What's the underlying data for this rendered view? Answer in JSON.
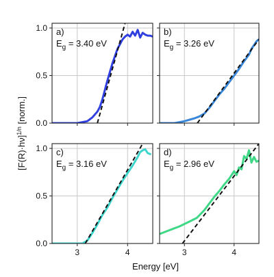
{
  "chart_data": {
    "type": "line",
    "ylabel": "[F(R)·hν]1/n [norm.]",
    "ylabel_main": "[F(R)·hν]",
    "ylabel_sup": "1/n",
    "ylabel_unit": " [norm.]",
    "xlabel": "Energy [eV]",
    "xlim": [
      2.5,
      4.5
    ],
    "ylim": [
      0,
      1.05
    ],
    "x_ticks": [
      3,
      4
    ],
    "y_ticks": [
      0.0,
      0.5,
      1.0
    ],
    "x_tick_labels": [
      "3",
      "4"
    ],
    "y_tick_labels": [
      "0.0",
      "0.5",
      "1.0"
    ],
    "grid": true,
    "layout": "2x2",
    "panels": [
      {
        "label": "a)",
        "gap_prefix": "E",
        "gap_sub": "g",
        "gap_value": " = 3.40 eV",
        "color": "#2f3fe0",
        "fit": {
          "x": [
            3.4,
            3.95
          ],
          "y": [
            0.0,
            1.05
          ]
        },
        "series": {
          "x": [
            2.5,
            2.8,
            3.0,
            3.2,
            3.3,
            3.4,
            3.45,
            3.5,
            3.6,
            3.7,
            3.8,
            3.9,
            3.95,
            4.0,
            4.05,
            4.1,
            4.15,
            4.2,
            4.25,
            4.3,
            4.35,
            4.4,
            4.45,
            4.5
          ],
          "y": [
            0.0,
            0.0,
            0.0,
            0.02,
            0.06,
            0.12,
            0.17,
            0.25,
            0.45,
            0.63,
            0.78,
            0.88,
            0.91,
            0.93,
            0.91,
            0.96,
            0.92,
            0.98,
            0.9,
            0.95,
            0.93,
            0.92,
            0.92,
            0.91
          ]
        }
      },
      {
        "label": "b)",
        "gap_prefix": "E",
        "gap_sub": "g",
        "gap_value": " = 3.26 eV",
        "color": "#3a86d8",
        "fit": {
          "x": [
            3.26,
            4.5
          ],
          "y": [
            0.0,
            0.88
          ]
        },
        "series": {
          "x": [
            2.5,
            2.8,
            3.0,
            3.2,
            3.3,
            3.4,
            3.5,
            3.6,
            3.7,
            3.8,
            3.9,
            4.0,
            4.1,
            4.2,
            4.3,
            4.35,
            4.4,
            4.45,
            4.5
          ],
          "y": [
            0.0,
            0.0,
            0.02,
            0.05,
            0.07,
            0.1,
            0.16,
            0.23,
            0.3,
            0.36,
            0.43,
            0.5,
            0.57,
            0.65,
            0.72,
            0.78,
            0.82,
            0.86,
            0.88
          ]
        }
      },
      {
        "label": "c)",
        "gap_prefix": "E",
        "gap_sub": "g",
        "gap_value": " = 3.16 eV",
        "color": "#3ed6cc",
        "fit": {
          "x": [
            3.16,
            4.3
          ],
          "y": [
            0.0,
            1.05
          ]
        },
        "series": {
          "x": [
            2.5,
            2.8,
            3.0,
            3.1,
            3.2,
            3.3,
            3.4,
            3.5,
            3.6,
            3.7,
            3.8,
            3.9,
            4.0,
            4.1,
            4.2,
            4.25,
            4.3,
            4.35,
            4.4,
            4.45
          ],
          "y": [
            0.0,
            0.0,
            0.0,
            0.0,
            0.03,
            0.11,
            0.2,
            0.3,
            0.38,
            0.48,
            0.57,
            0.66,
            0.74,
            0.82,
            0.91,
            0.96,
            0.98,
            0.99,
            0.95,
            0.94
          ]
        }
      },
      {
        "label": "d)",
        "gap_prefix": "E",
        "gap_sub": "g",
        "gap_value": " = 2.96 eV",
        "color": "#3fd886",
        "fit": {
          "x": [
            2.96,
            4.5
          ],
          "y": [
            0.0,
            1.05
          ]
        },
        "series": {
          "x": [
            2.5,
            2.7,
            2.9,
            3.1,
            3.25,
            3.4,
            3.5,
            3.6,
            3.7,
            3.8,
            3.9,
            4.0,
            4.05,
            4.1,
            4.15,
            4.2,
            4.25,
            4.3,
            4.35,
            4.4,
            4.45,
            4.5
          ],
          "y": [
            0.1,
            0.14,
            0.18,
            0.23,
            0.27,
            0.35,
            0.42,
            0.49,
            0.55,
            0.62,
            0.68,
            0.76,
            0.72,
            0.8,
            0.78,
            0.92,
            0.89,
            0.98,
            0.85,
            0.91,
            0.86,
            0.87
          ]
        }
      }
    ]
  }
}
